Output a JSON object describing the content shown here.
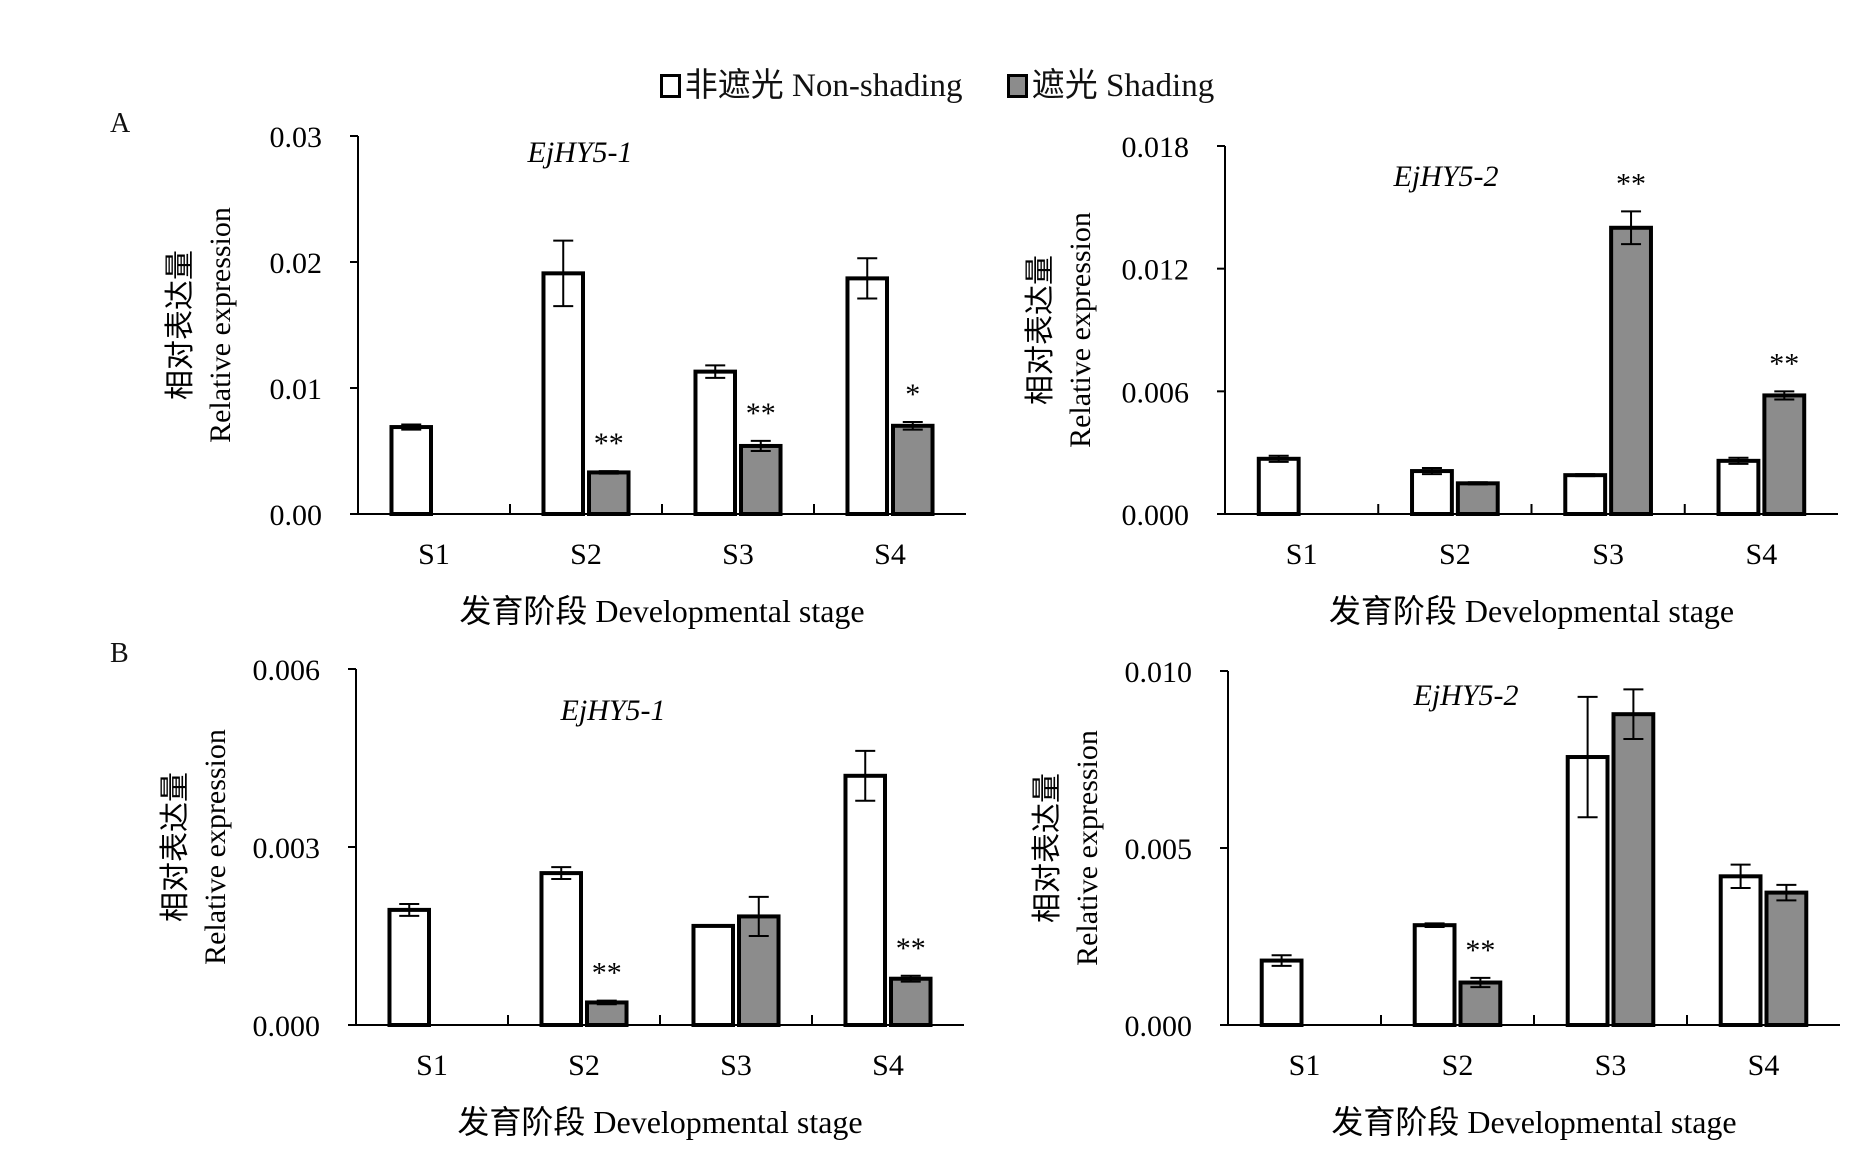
{
  "legend": {
    "items": [
      {
        "label": "非遮光 Non-shading",
        "color": "#ffffff"
      },
      {
        "label": "遮光 Shading",
        "color": "#8c8c8c"
      }
    ]
  },
  "panel_labels": {
    "A": "A",
    "B": "B"
  },
  "chart_data": [
    {
      "type": "bar",
      "panel": "A",
      "title": "EjHY5-1",
      "xlabel": "发育阶段 Developmental stage",
      "ylabel_cn": "相对表达量",
      "ylabel_en": "Relative expression",
      "categories": [
        "S1",
        "S2",
        "S3",
        "S4"
      ],
      "ylim": [
        0,
        0.03
      ],
      "yticks": [
        "0.00",
        "0.01",
        "0.02",
        "0.03"
      ],
      "ytick_values": [
        0,
        0.01,
        0.02,
        0.03
      ],
      "series": [
        {
          "name": "非遮光 Non-shading",
          "values": [
            0.0069,
            0.0191,
            0.0113,
            0.0187
          ],
          "errors": [
            0.0002,
            0.0026,
            0.0005,
            0.0016
          ]
        },
        {
          "name": "遮光 Shading",
          "values": [
            null,
            0.0033,
            0.0054,
            0.007
          ],
          "errors": [
            null,
            0.0001,
            0.0004,
            0.0003
          ]
        }
      ],
      "annotations": [
        "",
        "**",
        "**",
        "*"
      ],
      "annotation_series": [
        "",
        "遮光 Shading",
        "遮光 Shading",
        "遮光 Shading"
      ]
    },
    {
      "type": "bar",
      "panel": "A",
      "title": "EjHY5-2",
      "xlabel": "发育阶段 Developmental stage",
      "ylabel_cn": "相对表达量",
      "ylabel_en": "Relative expression",
      "categories": [
        "S1",
        "S2",
        "S3",
        "S4"
      ],
      "ylim": [
        0,
        0.018
      ],
      "yticks": [
        "0.000",
        "0.006",
        "0.012",
        "0.018"
      ],
      "ytick_values": [
        0,
        0.006,
        0.012,
        0.018
      ],
      "series": [
        {
          "name": "非遮光 Non-shading",
          "values": [
            0.0027,
            0.0021,
            0.0019,
            0.0026
          ],
          "errors": [
            0.00015,
            0.00015,
            5e-05,
            0.00015
          ]
        },
        {
          "name": "遮光 Shading",
          "values": [
            null,
            0.0015,
            0.014,
            0.0058
          ],
          "errors": [
            null,
            5e-05,
            0.0008,
            0.0002
          ]
        }
      ],
      "annotations": [
        "",
        "",
        "**",
        "**"
      ],
      "annotation_series": [
        "",
        "",
        "遮光 Shading",
        "遮光 Shading"
      ]
    },
    {
      "type": "bar",
      "panel": "B",
      "title": "EjHY5-1",
      "xlabel": "发育阶段 Developmental stage",
      "ylabel_cn": "相对表达量",
      "ylabel_en": "Relative expression",
      "categories": [
        "S1",
        "S2",
        "S3",
        "S4"
      ],
      "ylim": [
        0,
        0.006
      ],
      "yticks": [
        "0.000",
        "0.003",
        "0.006"
      ],
      "ytick_values": [
        0,
        0.003,
        0.006
      ],
      "series": [
        {
          "name": "非遮光 Non-shading",
          "values": [
            0.00194,
            0.00256,
            0.00167,
            0.0042
          ],
          "errors": [
            0.0001,
            0.0001,
            1e-05,
            0.00042
          ]
        },
        {
          "name": "遮光 Shading",
          "values": [
            null,
            0.00038,
            0.00183,
            0.00078
          ],
          "errors": [
            null,
            3e-05,
            0.00033,
            5e-05
          ]
        }
      ],
      "annotations": [
        "",
        "**",
        "",
        "**"
      ],
      "annotation_series": [
        "",
        "遮光 Shading",
        "",
        "遮光 Shading"
      ]
    },
    {
      "type": "bar",
      "panel": "B",
      "title": "EjHY5-2",
      "xlabel": "发育阶段 Developmental stage",
      "ylabel_cn": "相对表达量",
      "ylabel_en": "Relative expression",
      "categories": [
        "S1",
        "S2",
        "S3",
        "S4"
      ],
      "ylim": [
        0,
        0.01
      ],
      "yticks": [
        "0.000",
        "0.005",
        "0.010"
      ],
      "ytick_values": [
        0,
        0.005,
        0.01
      ],
      "series": [
        {
          "name": "非遮光 Non-shading",
          "values": [
            0.00182,
            0.00282,
            0.00757,
            0.0042
          ],
          "errors": [
            0.00015,
            5e-05,
            0.0017,
            0.00033
          ]
        },
        {
          "name": "遮光 Shading",
          "values": [
            null,
            0.0012,
            0.00878,
            0.00374
          ],
          "errors": [
            null,
            0.00013,
            0.0007,
            0.00022
          ]
        }
      ],
      "annotations": [
        "",
        "**",
        "",
        ""
      ],
      "annotation_series": [
        "",
        "遮光 Shading",
        "",
        ""
      ]
    }
  ]
}
